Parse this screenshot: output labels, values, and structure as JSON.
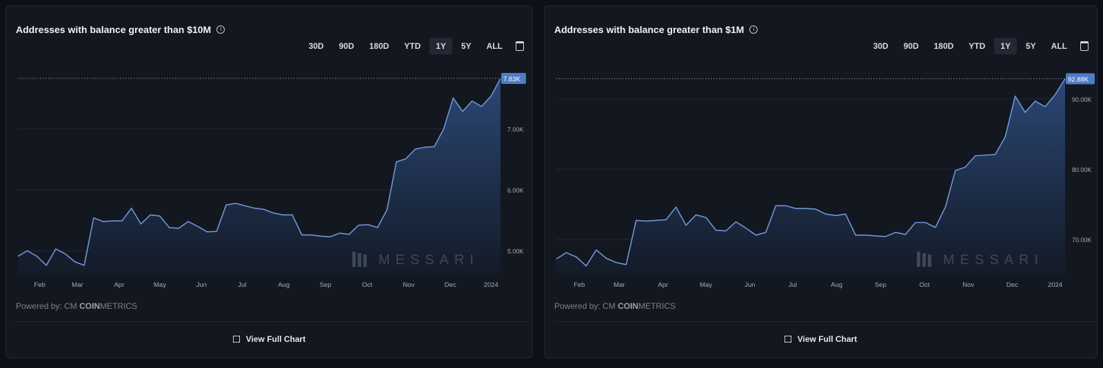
{
  "range_options": [
    "30D",
    "90D",
    "180D",
    "YTD",
    "1Y",
    "5Y",
    "ALL"
  ],
  "active_range": "1Y",
  "powered_by": "Powered by:",
  "provider_logo": {
    "prefix": "CM",
    "bold": "COIN",
    "light": "METRICS"
  },
  "view_full_chart": "View Full Chart",
  "watermark": "MESSARI",
  "colors": {
    "line": "#6f97d6",
    "fill_top": "#2c4a7a",
    "fill_bottom": "#141b28",
    "badge": "#4f7cc6"
  },
  "chart_data": [
    {
      "type": "area",
      "title": "Addresses with balance greater than $10M",
      "last_value_label": "7.83K",
      "x_ticks": [
        {
          "label": "Feb",
          "at": 2.3
        },
        {
          "label": "Mar",
          "at": 6.3
        },
        {
          "label": "Apr",
          "at": 10.7
        },
        {
          "label": "May",
          "at": 15
        },
        {
          "label": "Jun",
          "at": 19.4
        },
        {
          "label": "Jul",
          "at": 23.7
        },
        {
          "label": "Aug",
          "at": 28.1
        },
        {
          "label": "Sep",
          "at": 32.5
        },
        {
          "label": "Oct",
          "at": 36.9
        },
        {
          "label": "Nov",
          "at": 41.3
        },
        {
          "label": "Dec",
          "at": 45.7
        },
        {
          "label": "2024",
          "at": 50
        }
      ],
      "y_ticks": [
        {
          "label": "5.00K",
          "v": 5
        },
        {
          "label": "6.00K",
          "v": 6
        },
        {
          "label": "7.00K",
          "v": 7
        }
      ],
      "ylim": [
        4.6,
        8.0
      ],
      "unit": "K",
      "values": [
        4.91,
        5.0,
        4.91,
        4.76,
        5.03,
        4.95,
        4.82,
        4.76,
        5.54,
        5.48,
        5.49,
        5.49,
        5.7,
        5.44,
        5.59,
        5.57,
        5.38,
        5.37,
        5.48,
        5.4,
        5.31,
        5.32,
        5.75,
        5.78,
        5.74,
        5.7,
        5.68,
        5.62,
        5.59,
        5.59,
        5.26,
        5.26,
        5.24,
        5.23,
        5.29,
        5.27,
        5.42,
        5.43,
        5.38,
        5.67,
        6.46,
        6.51,
        6.67,
        6.7,
        6.71,
        7.0,
        7.51,
        7.29,
        7.46,
        7.37,
        7.54,
        7.83
      ]
    },
    {
      "type": "area",
      "title": "Addresses with balance greater than $1M",
      "last_value_label": "92.88K",
      "x_ticks": [
        {
          "label": "Feb",
          "at": 2.3
        },
        {
          "label": "Mar",
          "at": 6.3
        },
        {
          "label": "Apr",
          "at": 10.7
        },
        {
          "label": "May",
          "at": 15
        },
        {
          "label": "Jun",
          "at": 19.4
        },
        {
          "label": "Jul",
          "at": 23.7
        },
        {
          "label": "Aug",
          "at": 28.1
        },
        {
          "label": "Sep",
          "at": 32.5
        },
        {
          "label": "Oct",
          "at": 36.9
        },
        {
          "label": "Nov",
          "at": 41.3
        },
        {
          "label": "Dec",
          "at": 45.7
        },
        {
          "label": "2024",
          "at": 50
        }
      ],
      "y_ticks": [
        {
          "label": "70.00K",
          "v": 70
        },
        {
          "label": "80.00K",
          "v": 80
        },
        {
          "label": "90.00K",
          "v": 90
        }
      ],
      "ylim": [
        64.9,
        94.4
      ],
      "unit": "K",
      "values": [
        67.2,
        68.1,
        67.5,
        66.2,
        68.5,
        67.3,
        66.7,
        66.4,
        72.7,
        72.6,
        72.7,
        72.8,
        74.6,
        72.0,
        73.5,
        73.1,
        71.3,
        71.2,
        72.5,
        71.6,
        70.6,
        71.0,
        74.8,
        74.8,
        74.4,
        74.4,
        74.3,
        73.6,
        73.4,
        73.6,
        70.6,
        70.6,
        70.5,
        70.4,
        71.0,
        70.7,
        72.4,
        72.4,
        71.7,
        74.6,
        79.8,
        80.3,
        81.9,
        82.0,
        82.1,
        84.6,
        90.4,
        88.1,
        89.7,
        88.9,
        90.6,
        92.88
      ]
    }
  ]
}
